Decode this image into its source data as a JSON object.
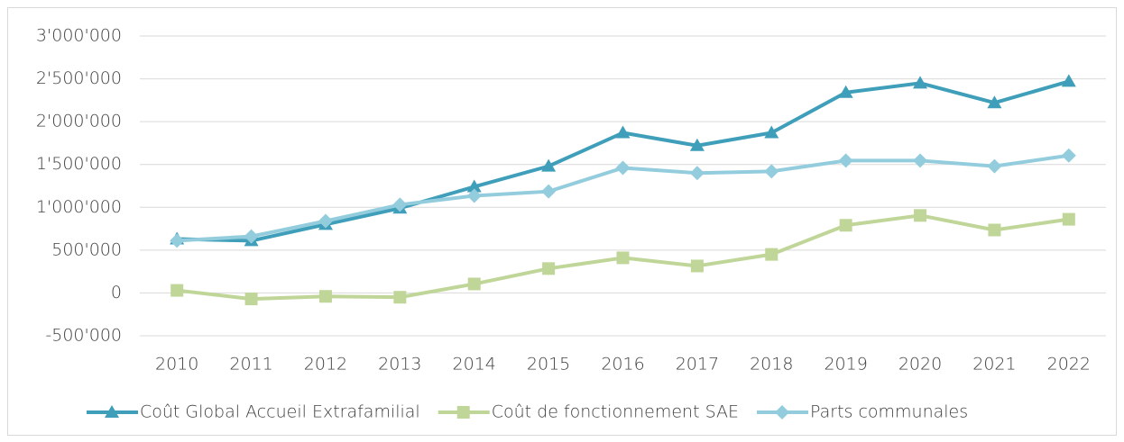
{
  "chart_data": {
    "type": "line",
    "categories": [
      "2010",
      "2011",
      "2012",
      "2013",
      "2014",
      "2015",
      "2016",
      "2017",
      "2018",
      "2019",
      "2020",
      "2021",
      "2022"
    ],
    "ylim": [
      -500000,
      3000000
    ],
    "yticks": [
      {
        "value": -500000,
        "label": "-500'000"
      },
      0,
      {
        "value": 500000,
        "label": "500'000"
      },
      {
        "value": 1000000,
        "label": "1'000'000"
      },
      {
        "value": 1500000,
        "label": "1'500'000"
      },
      {
        "value": 2000000,
        "label": "2'000'000"
      },
      {
        "value": 2500000,
        "label": "2'500'000"
      },
      {
        "value": 3000000,
        "label": "3'000'000"
      }
    ],
    "grid": true,
    "legend": "bottom",
    "series": [
      {
        "name": "Coût Global Accueil Extrafamilial",
        "color": "#3f9fba",
        "marker": "triangle",
        "values": [
          630000,
          610000,
          800000,
          990000,
          1240000,
          1480000,
          1870000,
          1720000,
          1870000,
          2340000,
          2450000,
          2220000,
          2470000
        ]
      },
      {
        "name": "Coût de fonctionnement SAE",
        "color": "#c0d699",
        "marker": "square",
        "values": [
          30000,
          -70000,
          -40000,
          -50000,
          105000,
          285000,
          410000,
          315000,
          450000,
          790000,
          905000,
          735000,
          860000
        ]
      },
      {
        "name": "Parts communales",
        "color": "#93cddd",
        "marker": "diamond",
        "values": [
          610000,
          660000,
          840000,
          1030000,
          1135000,
          1185000,
          1460000,
          1400000,
          1420000,
          1545000,
          1545000,
          1480000,
          1605000
        ]
      }
    ]
  }
}
